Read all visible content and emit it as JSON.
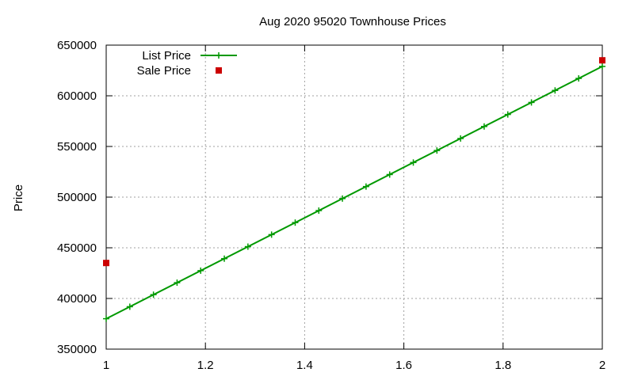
{
  "chart_data": {
    "type": "line",
    "title": "Aug 2020 95020 Townhouse Prices",
    "xlabel": "",
    "ylabel": "Price",
    "xlim": [
      1,
      2
    ],
    "ylim": [
      350000,
      650000
    ],
    "xticks": [
      "1",
      "1.2",
      "1.4",
      "1.6",
      "1.8",
      "2"
    ],
    "xtick_values": [
      1,
      1.2,
      1.4,
      1.6,
      1.8,
      2
    ],
    "yticks": [
      "350000",
      "400000",
      "450000",
      "500000",
      "550000",
      "600000",
      "650000"
    ],
    "ytick_values": [
      350000,
      400000,
      450000,
      500000,
      550000,
      600000,
      650000
    ],
    "grid": true,
    "legend_position": "top-left",
    "series": [
      {
        "name": "List Price",
        "style": "linespoints",
        "marker": "plus",
        "color": "#009900",
        "x": [
          1,
          2
        ],
        "y": [
          380000,
          629000
        ]
      },
      {
        "name": "Sale Price",
        "style": "points",
        "marker": "square",
        "color": "#cc0000",
        "x": [
          1,
          2
        ],
        "y": [
          435000,
          635000
        ]
      }
    ]
  }
}
